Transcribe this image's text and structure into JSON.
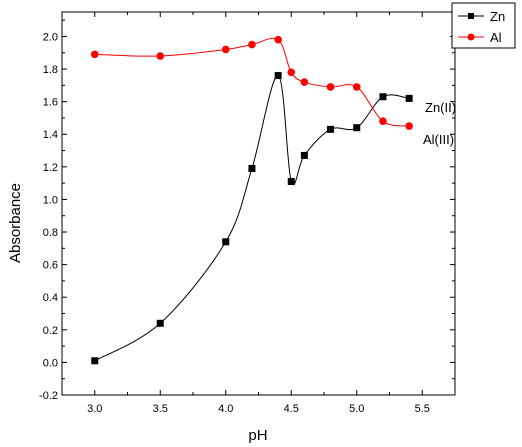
{
  "chart_data": {
    "type": "line",
    "xlabel": "pH",
    "ylabel": "Absorbance",
    "xlim": [
      2.75,
      5.75
    ],
    "ylim": [
      -0.2,
      2.15
    ],
    "xticks": [
      "3.0",
      "3.5",
      "4.0",
      "4.5",
      "5.0",
      "5.5"
    ],
    "yticks": [
      "-0.2",
      "0.0",
      "0.2",
      "0.4",
      "0.6",
      "0.8",
      "1.0",
      "1.2",
      "1.4",
      "1.6",
      "1.8",
      "2.0"
    ],
    "grid": false,
    "legend_position": "top-right",
    "series": [
      {
        "name": "Zn",
        "color": "#000000",
        "marker": "square",
        "x": [
          3.0,
          3.5,
          4.0,
          4.2,
          4.4,
          4.5,
          4.6,
          4.8,
          5.0,
          5.2,
          5.4
        ],
        "y": [
          0.01,
          0.24,
          0.74,
          1.19,
          1.76,
          1.11,
          1.27,
          1.43,
          1.44,
          1.63,
          1.62
        ]
      },
      {
        "name": "Al",
        "color": "#ff0000",
        "marker": "circle",
        "x": [
          3.0,
          3.5,
          4.0,
          4.2,
          4.4,
          4.5,
          4.6,
          4.8,
          5.0,
          5.2,
          5.4
        ],
        "y": [
          1.89,
          1.88,
          1.92,
          1.95,
          1.98,
          1.78,
          1.72,
          1.69,
          1.69,
          1.48,
          1.45
        ]
      }
    ],
    "annotations": [
      "Zn(II)",
      "Al(III)"
    ]
  }
}
